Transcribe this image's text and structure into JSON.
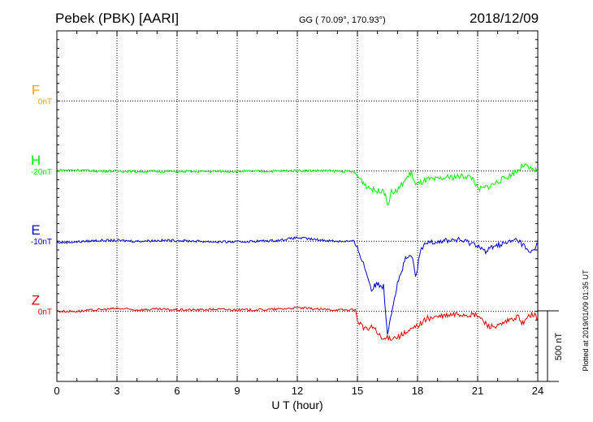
{
  "header": {
    "station": "Pebek (PBK)  [AARI]",
    "coords": "GG ( 70.09°, 170.93°)",
    "date": "2018/12/09"
  },
  "footer": {
    "xlabel": "U T (hour)",
    "scale_label": "500 nT",
    "plotted_note": "Plotted at 2019/01/09 01:35 UT"
  },
  "colors": {
    "F": "#ffa500",
    "H": "#00ee00",
    "E": "#0000cc",
    "Z": "#dd0000"
  },
  "chart_data": {
    "type": "line",
    "title": "Pebek (PBK)  [AARI]",
    "xlabel": "U T (hour)",
    "xlim": [
      0,
      24
    ],
    "x_ticks": [
      0,
      3,
      6,
      9,
      12,
      15,
      18,
      21,
      24
    ],
    "grid": true,
    "scale_bar_nT": 500,
    "units": "nT",
    "channels": [
      {
        "name": "F",
        "baseline": "0nT",
        "color": "#ffa500",
        "points": []
      },
      {
        "name": "H",
        "baseline": "-20nT",
        "color": "#00ee00",
        "points": [
          [
            0,
            5
          ],
          [
            1,
            8
          ],
          [
            2,
            0
          ],
          [
            3,
            0
          ],
          [
            4,
            -3
          ],
          [
            5,
            -2
          ],
          [
            6,
            -3
          ],
          [
            7,
            -3
          ],
          [
            8,
            -2
          ],
          [
            9,
            -2
          ],
          [
            10,
            -2
          ],
          [
            11,
            0
          ],
          [
            12,
            3
          ],
          [
            13,
            3
          ],
          [
            14,
            0
          ],
          [
            14.8,
            -5
          ],
          [
            15.1,
            -50
          ],
          [
            15.5,
            -110
          ],
          [
            16,
            -145
          ],
          [
            16.3,
            -125
          ],
          [
            16.5,
            -240
          ],
          [
            16.7,
            -150
          ],
          [
            17,
            -140
          ],
          [
            17.4,
            -60
          ],
          [
            17.7,
            -10
          ],
          [
            17.9,
            -100
          ],
          [
            18.2,
            -80
          ],
          [
            18.5,
            -60
          ],
          [
            19,
            -60
          ],
          [
            19.5,
            -45
          ],
          [
            20,
            -40
          ],
          [
            20.5,
            -35
          ],
          [
            20.8,
            -55
          ],
          [
            21,
            -130
          ],
          [
            21.3,
            -120
          ],
          [
            21.7,
            -100
          ],
          [
            22,
            -75
          ],
          [
            22.5,
            -40
          ],
          [
            23,
            5
          ],
          [
            23.3,
            45
          ],
          [
            23.6,
            15
          ],
          [
            24,
            0
          ]
        ]
      },
      {
        "name": "E",
        "baseline": "-10nT",
        "color": "#0000cc",
        "points": [
          [
            0,
            -10
          ],
          [
            1,
            -5
          ],
          [
            2,
            5
          ],
          [
            3,
            5
          ],
          [
            4,
            0
          ],
          [
            5,
            5
          ],
          [
            6,
            5
          ],
          [
            7,
            0
          ],
          [
            8,
            -5
          ],
          [
            9,
            -5
          ],
          [
            10,
            0
          ],
          [
            11,
            5
          ],
          [
            12,
            25
          ],
          [
            13,
            10
          ],
          [
            14,
            0
          ],
          [
            14.8,
            0
          ],
          [
            15.1,
            -80
          ],
          [
            15.4,
            -200
          ],
          [
            15.7,
            -340
          ],
          [
            16,
            -300
          ],
          [
            16.3,
            -320
          ],
          [
            16.5,
            -650
          ],
          [
            16.7,
            -500
          ],
          [
            17,
            -300
          ],
          [
            17.4,
            -130
          ],
          [
            17.7,
            -100
          ],
          [
            17.9,
            -250
          ],
          [
            18.2,
            -50
          ],
          [
            18.6,
            0
          ],
          [
            19,
            0
          ],
          [
            20,
            10
          ],
          [
            21,
            -25
          ],
          [
            21.4,
            -80
          ],
          [
            21.8,
            -30
          ],
          [
            22.3,
            -20
          ],
          [
            22.8,
            5
          ],
          [
            23,
            10
          ],
          [
            23.3,
            -30
          ],
          [
            23.6,
            -90
          ],
          [
            24,
            -20
          ]
        ]
      },
      {
        "name": "Z",
        "baseline": "0nT",
        "color": "#dd0000",
        "points": [
          [
            0,
            0
          ],
          [
            1,
            0
          ],
          [
            2,
            10
          ],
          [
            3,
            20
          ],
          [
            4,
            10
          ],
          [
            5,
            15
          ],
          [
            6,
            10
          ],
          [
            7,
            10
          ],
          [
            8,
            15
          ],
          [
            9,
            10
          ],
          [
            10,
            10
          ],
          [
            11,
            15
          ],
          [
            12,
            25
          ],
          [
            13,
            15
          ],
          [
            14,
            10
          ],
          [
            14.9,
            10
          ],
          [
            15,
            -60
          ],
          [
            15.4,
            -130
          ],
          [
            15.8,
            -110
          ],
          [
            16.2,
            -200
          ],
          [
            16.5,
            -190
          ],
          [
            17,
            -180
          ],
          [
            17.5,
            -150
          ],
          [
            18,
            -100
          ],
          [
            18.5,
            -50
          ],
          [
            19,
            -40
          ],
          [
            20,
            -20
          ],
          [
            21,
            -30
          ],
          [
            21.5,
            -100
          ],
          [
            22,
            -110
          ],
          [
            22.5,
            -70
          ],
          [
            23,
            -40
          ],
          [
            23.3,
            -90
          ],
          [
            23.6,
            -20
          ],
          [
            24,
            -40
          ]
        ]
      }
    ]
  }
}
